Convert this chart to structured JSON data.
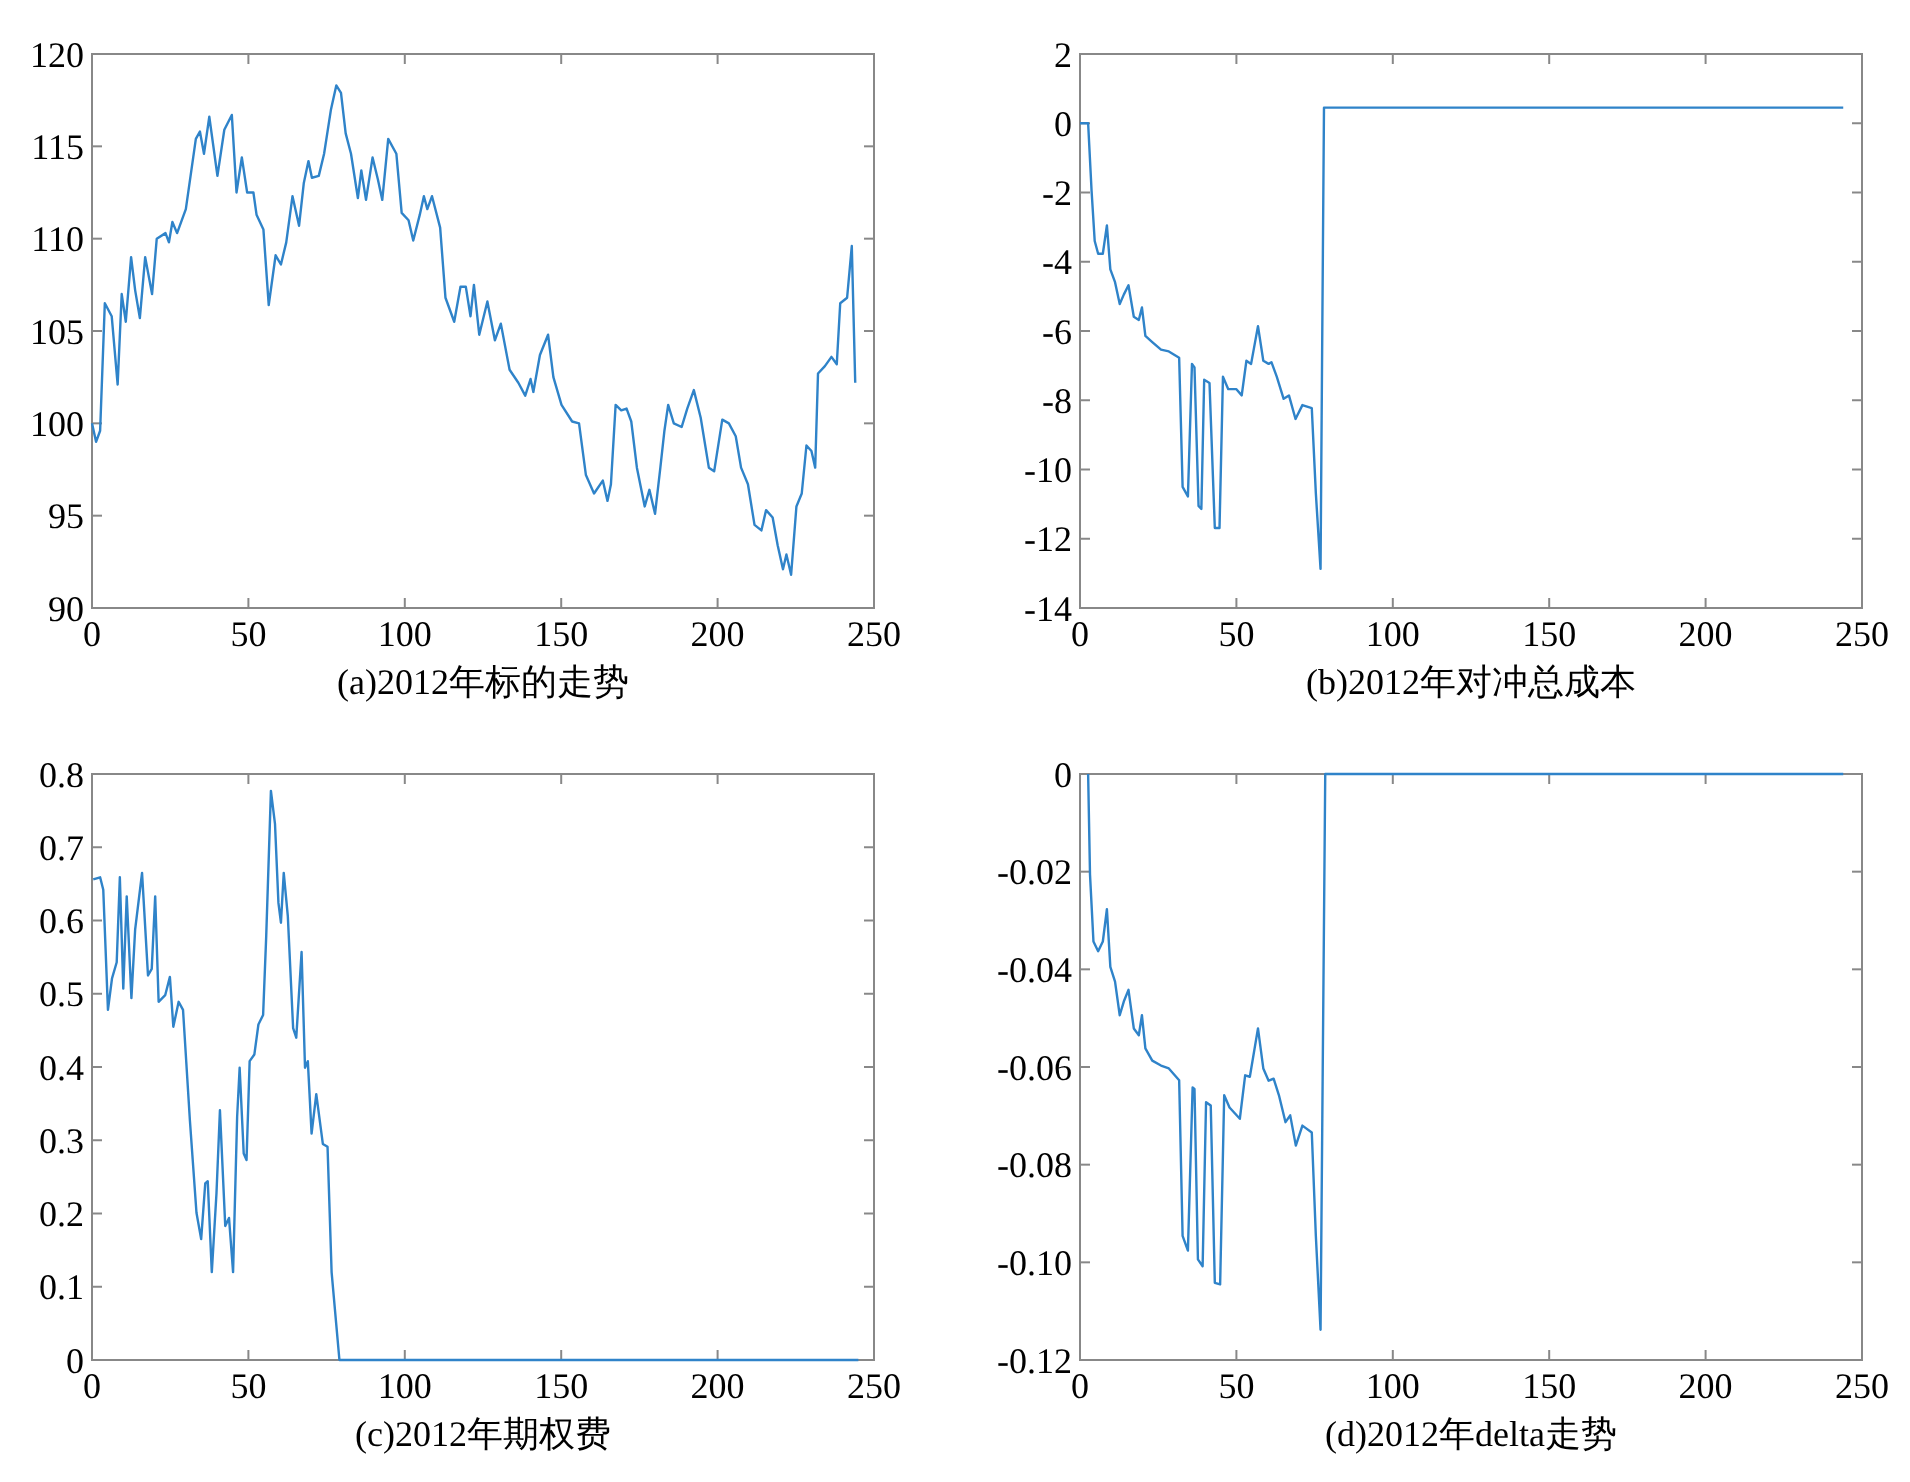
{
  "chart_data": [
    {
      "type": "line",
      "title": "(a)2012年标的走势",
      "color": "#2f83c9",
      "xlim": [
        0,
        250
      ],
      "xticks": [
        0,
        50,
        100,
        150,
        200,
        250
      ],
      "ylim": [
        90,
        120
      ],
      "yticks": [
        90,
        95,
        100,
        105,
        110,
        115,
        120
      ],
      "x": [
        0,
        1.3,
        2.6,
        4.1,
        6.3,
        8.2,
        9.5,
        10.8,
        12.5,
        13.8,
        15.3,
        17,
        19.2,
        20.7,
        23.5,
        24.6,
        25.7,
        27.2,
        30,
        33.2,
        34.5,
        35.8,
        37.5,
        40.1,
        42.3,
        44.7,
        46.2,
        47.9,
        49.6,
        51.6,
        52.6,
        54.8,
        56.5,
        58.7,
        60.4,
        62.1,
        64.1,
        66.2,
        67.7,
        69.2,
        70.3,
        72.5,
        74.2,
        76.4,
        78.1,
        79.6,
        81.1,
        82.8,
        85,
        86.1,
        87.6,
        89.7,
        91.4,
        92.8,
        94.7,
        97.3,
        99,
        101.2,
        102.7,
        104.8,
        106.1,
        107.2,
        108.7,
        111.3,
        113,
        115.8,
        117.8,
        119.5,
        121,
        122.1,
        123.8,
        126.4,
        128.8,
        130.7,
        133.5,
        136.3,
        138.5,
        140.2,
        141.1,
        143.2,
        145.8,
        147.5,
        150.1,
        153.5,
        155.7,
        157.9,
        160.5,
        163.3,
        164.8,
        165.9,
        167.4,
        169.2,
        170.9,
        172.4,
        174.2,
        176.7,
        178.2,
        180,
        181.7,
        183,
        184.2,
        186,
        188.5,
        190.3,
        192.4,
        194.6,
        197.2,
        198.9,
        201.5,
        203.6,
        205.8,
        207.5,
        209.7,
        211.8,
        214,
        215.5,
        217.6,
        219.2,
        220.9,
        222,
        223.5,
        225.2,
        226.9,
        228.4,
        230,
        231.2,
        232.1,
        234.3,
        236.4,
        238.1,
        239.2,
        241.4,
        242.9,
        244
      ],
      "values": [
        100,
        99,
        99.6,
        106.5,
        105.8,
        102.1,
        107,
        105.5,
        109,
        107.2,
        105.7,
        109,
        107,
        110,
        110.3,
        109.8,
        110.9,
        110.3,
        111.6,
        115.4,
        115.8,
        114.6,
        116.6,
        113.4,
        115.9,
        116.7,
        112.5,
        114.4,
        112.5,
        112.5,
        111.3,
        110.5,
        106.4,
        109.1,
        108.6,
        109.8,
        112.3,
        110.7,
        113,
        114.2,
        113.3,
        113.4,
        114.6,
        117,
        118.3,
        117.9,
        115.7,
        114.6,
        112.2,
        113.7,
        112.1,
        114.4,
        113.2,
        112.1,
        115.4,
        114.6,
        111.4,
        111,
        109.9,
        111.3,
        112.3,
        111.6,
        112.3,
        110.6,
        106.8,
        105.5,
        107.4,
        107.4,
        105.8,
        107.5,
        104.8,
        106.6,
        104.5,
        105.4,
        102.9,
        102.2,
        101.5,
        102.4,
        101.7,
        103.7,
        104.8,
        102.5,
        101,
        100.1,
        100,
        97.2,
        96.2,
        96.9,
        95.8,
        96.7,
        101,
        100.7,
        100.8,
        100.1,
        97.6,
        95.5,
        96.4,
        95.1,
        97.6,
        99.6,
        101,
        100,
        99.8,
        100.8,
        101.8,
        100.3,
        97.6,
        97.4,
        100.2,
        100,
        99.3,
        97.6,
        96.7,
        94.5,
        94.2,
        95.3,
        94.9,
        93.4,
        92.1,
        92.9,
        91.8,
        95.5,
        96.2,
        98.8,
        98.5,
        97.6,
        102.7,
        103.1,
        103.6,
        103.2,
        106.5,
        106.8,
        109.6,
        102.2
      ]
    },
    {
      "type": "line",
      "title": "(b)2012年对冲总成本",
      "color": "#2f83c9",
      "xlim": [
        0,
        250
      ],
      "xticks": [
        0,
        50,
        100,
        150,
        200,
        250
      ],
      "ylim": [
        -14,
        2
      ],
      "yticks": [
        -14,
        -12,
        -10,
        -8,
        -6,
        -4,
        -2,
        0,
        2
      ],
      "x": [
        0,
        2.6,
        3.7,
        4.7,
        5.8,
        7.3,
        8.6,
        9.7,
        11.2,
        12.7,
        14,
        15.5,
        17.2,
        18.8,
        19.8,
        20.9,
        23.1,
        25.9,
        28.4,
        31.7,
        32.8,
        34.5,
        35.8,
        36.6,
        37.9,
        38.8,
        39.7,
        41.4,
        43.1,
        44.6,
        45.7,
        47.4,
        50,
        51.7,
        53.2,
        54.7,
        56.9,
        58.6,
        60.3,
        61.2,
        62.9,
        65.1,
        66.8,
        68.9,
        71.1,
        74.1,
        75.4,
        76.9,
        77.4,
        78,
        244
      ],
      "values": [
        0,
        0,
        -1.95,
        -3.4,
        -3.77,
        -3.77,
        -2.95,
        -4.22,
        -4.59,
        -5.22,
        -4.95,
        -4.68,
        -5.59,
        -5.68,
        -5.32,
        -6.14,
        -6.32,
        -6.54,
        -6.59,
        -6.77,
        -10.5,
        -10.78,
        -6.95,
        -7.05,
        -11.05,
        -11.14,
        -7.41,
        -7.5,
        -11.69,
        -11.69,
        -7.32,
        -7.68,
        -7.68,
        -7.86,
        -6.86,
        -6.95,
        -5.86,
        -6.86,
        -6.95,
        -6.9,
        -7.32,
        -7.96,
        -7.86,
        -8.54,
        -8.14,
        -8.23,
        -10.69,
        -12.87,
        -6.68,
        0.45,
        0.45
      ]
    },
    {
      "type": "line",
      "title": "(c)2012年期权费",
      "color": "#2f83c9",
      "xlim": [
        0,
        250
      ],
      "xticks": [
        0,
        50,
        100,
        150,
        200,
        250
      ],
      "ylim": [
        0,
        0.8
      ],
      "yticks": [
        0,
        0.1,
        0.2,
        0.3,
        0.4,
        0.5,
        0.6,
        0.7,
        0.8
      ],
      "x": [
        0.4,
        2.6,
        3.6,
        5.1,
        6.4,
        7.9,
        8.9,
        10,
        11.1,
        12.6,
        13.8,
        16,
        17.9,
        19.1,
        20.2,
        21.3,
        23.4,
        24.9,
        26,
        27.7,
        29.1,
        31.3,
        33.4,
        34.9,
        36.2,
        37,
        38.3,
        39.8,
        40.9,
        42.6,
        43.8,
        45.1,
        46.4,
        47.2,
        48.5,
        49.4,
        50.4,
        51.9,
        53.2,
        54.7,
        55.7,
        57.2,
        58.5,
        59.6,
        60.4,
        61.3,
        62.6,
        64.3,
        65.3,
        67,
        68.1,
        69,
        70.2,
        71.7,
        73.8,
        75.3,
        76.6,
        78.1,
        79.1,
        245
      ],
      "values": [
        0.656,
        0.659,
        0.642,
        0.478,
        0.521,
        0.543,
        0.659,
        0.507,
        0.633,
        0.494,
        0.588,
        0.665,
        0.525,
        0.534,
        0.633,
        0.489,
        0.498,
        0.523,
        0.455,
        0.489,
        0.478,
        0.327,
        0.201,
        0.165,
        0.241,
        0.244,
        0.12,
        0.228,
        0.341,
        0.183,
        0.194,
        0.12,
        0.332,
        0.399,
        0.282,
        0.273,
        0.408,
        0.417,
        0.458,
        0.471,
        0.579,
        0.777,
        0.732,
        0.624,
        0.597,
        0.665,
        0.606,
        0.453,
        0.44,
        0.557,
        0.399,
        0.408,
        0.309,
        0.363,
        0.295,
        0.291,
        0.12,
        0.048,
        0,
        0
      ]
    },
    {
      "type": "line",
      "title": "(d)2012年delta走势",
      "color": "#2f83c9",
      "xlim": [
        0,
        250
      ],
      "xticks": [
        0,
        50,
        100,
        150,
        200,
        250
      ],
      "ylim": [
        -0.12,
        0
      ],
      "yticks": [
        -0.12,
        {
          "value": -0.1,
          "label": "-0.10"
        },
        {
          "value": -0.08,
          "label": "-0.08"
        },
        {
          "value": -0.06,
          "label": "-0.06"
        },
        {
          "value": -0.04,
          "label": "-0.04"
        },
        {
          "value": -0.02,
          "label": "-0.02"
        },
        0
      ],
      "x": [
        2.6,
        3.2,
        4.3,
        5.8,
        7.3,
        8.6,
        9.7,
        11.2,
        12.7,
        14,
        15.5,
        17.2,
        18.8,
        19.8,
        20.9,
        23.1,
        25.9,
        28.4,
        31.7,
        32.8,
        34.5,
        36,
        36.6,
        37.7,
        39.2,
        40.3,
        41.8,
        43.1,
        44.8,
        46.1,
        47.8,
        51.1,
        52.8,
        54.3,
        56.9,
        58.6,
        60.3,
        61.9,
        63.6,
        65.7,
        67.2,
        69,
        71.1,
        74.1,
        75.4,
        76.9,
        77.6,
        78.4,
        244
      ],
      "values": [
        0,
        -0.0206,
        -0.0343,
        -0.0363,
        -0.0343,
        -0.0277,
        -0.0395,
        -0.0425,
        -0.0494,
        -0.0466,
        -0.0442,
        -0.0521,
        -0.0535,
        -0.0494,
        -0.0562,
        -0.0587,
        -0.0597,
        -0.0603,
        -0.0627,
        -0.0946,
        -0.0976,
        -0.0642,
        -0.0645,
        -0.0994,
        -0.1008,
        -0.0672,
        -0.0679,
        -0.1042,
        -0.1045,
        -0.0658,
        -0.0683,
        -0.0706,
        -0.0617,
        -0.062,
        -0.0521,
        -0.0603,
        -0.0628,
        -0.0624,
        -0.0658,
        -0.0713,
        -0.0699,
        -0.0761,
        -0.072,
        -0.0734,
        -0.0946,
        -0.1138,
        -0.0603,
        0,
        0
      ]
    }
  ]
}
